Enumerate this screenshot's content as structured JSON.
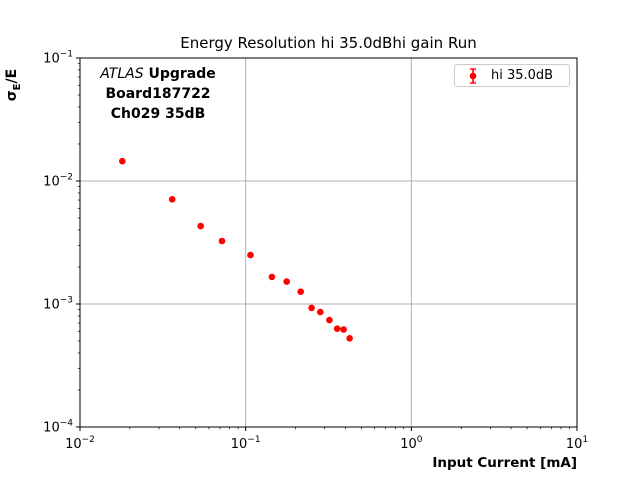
{
  "title": "Energy Resolution hi 35.0dBhi gain Run",
  "annotation": {
    "line1_italic": "ATLAS",
    "line1_bold": " Upgrade",
    "line2": "Board187722",
    "line3": "Ch029 35dB"
  },
  "legend": {
    "label": "hi 35.0dB"
  },
  "axes": {
    "xlabel": "Input Current [mA]",
    "ylabel_sigma": "σ",
    "ylabel_sub": "E",
    "ylabel_rest": "/E"
  },
  "colors": {
    "series_red": "#ff0000",
    "grid": "#b0b0b0",
    "axis": "#000000",
    "legend_border": "#cccccc"
  },
  "chart_data": {
    "type": "scatter",
    "title": "Energy Resolution hi 35.0dBhi gain Run",
    "xlabel": "Input Current [mA]",
    "ylabel": "sigma_E/E",
    "xscale": "log",
    "yscale": "log",
    "xlim": [
      0.01,
      10
    ],
    "ylim": [
      0.0001,
      0.1
    ],
    "grid": true,
    "legend_position": "upper right",
    "x_ticks": [
      {
        "value": 0.01,
        "base": "10",
        "exp": "−2"
      },
      {
        "value": 0.1,
        "base": "10",
        "exp": "−1"
      },
      {
        "value": 1,
        "base": "10",
        "exp": "0"
      },
      {
        "value": 10,
        "base": "10",
        "exp": "1"
      }
    ],
    "y_ticks": [
      {
        "value": 0.1,
        "base": "10",
        "exp": "−1"
      },
      {
        "value": 0.01,
        "base": "10",
        "exp": "−2"
      },
      {
        "value": 0.001,
        "base": "10",
        "exp": "−3"
      },
      {
        "value": 0.0001,
        "base": "10",
        "exp": "−4"
      }
    ],
    "series": [
      {
        "name": "hi 35.0dB",
        "color": "#ff0000",
        "marker": "circle-with-errorbar",
        "x": [
          0.018,
          0.036,
          0.0535,
          0.072,
          0.107,
          0.144,
          0.177,
          0.215,
          0.25,
          0.282,
          0.32,
          0.357,
          0.39,
          0.424
        ],
        "y": [
          0.0145,
          0.0071,
          0.0043,
          0.00325,
          0.0025,
          0.00166,
          0.00152,
          0.00126,
          0.00093,
          0.00086,
          0.00074,
          0.00063,
          0.00062,
          0.000526
        ]
      }
    ]
  }
}
